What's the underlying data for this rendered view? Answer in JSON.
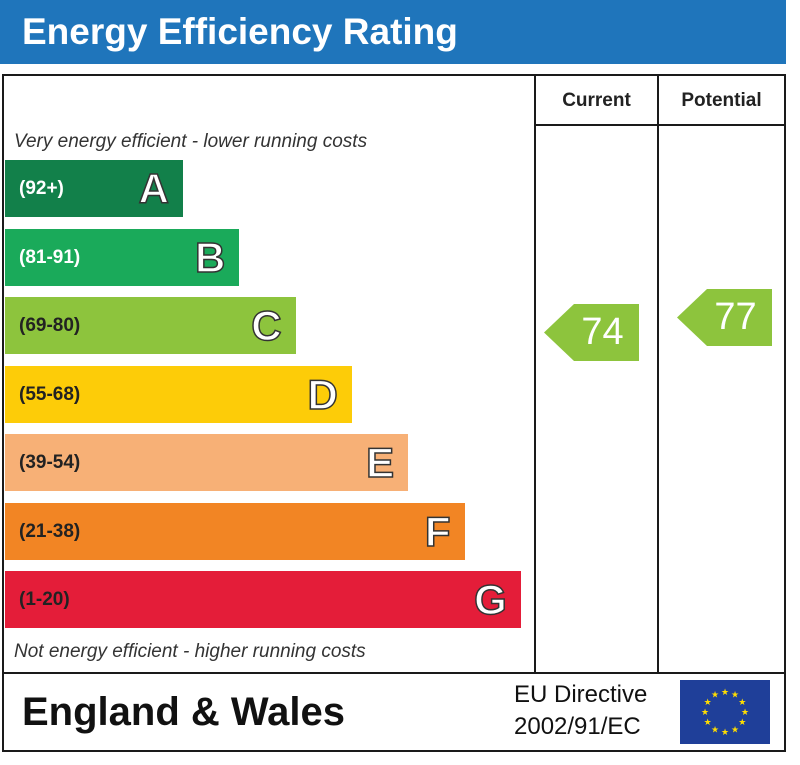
{
  "header": {
    "title": "Energy Efficiency Rating"
  },
  "columns": {
    "current": "Current",
    "potential": "Potential"
  },
  "notes": {
    "top": "Very energy efficient - lower running costs",
    "bottom": "Not energy efficient - higher running costs"
  },
  "chart_data": {
    "type": "bar",
    "title": "Energy Efficiency Rating",
    "categories": [
      "A",
      "B",
      "C",
      "D",
      "E",
      "F",
      "G"
    ],
    "bands": [
      {
        "letter": "A",
        "range": "(92+)",
        "color": "#12804a"
      },
      {
        "letter": "B",
        "range": "(81-91)",
        "color": "#1aaa5a"
      },
      {
        "letter": "C",
        "range": "(69-80)",
        "color": "#8dc43d"
      },
      {
        "letter": "D",
        "range": "(55-68)",
        "color": "#fdcc08"
      },
      {
        "letter": "E",
        "range": "(39-54)",
        "color": "#f7b076"
      },
      {
        "letter": "F",
        "range": "(21-38)",
        "color": "#f28524"
      },
      {
        "letter": "G",
        "range": "(1-20)",
        "color": "#e41d39"
      }
    ],
    "ratings": {
      "current": {
        "value": "74",
        "band": "C",
        "color": "#8dc43d"
      },
      "potential": {
        "value": "77",
        "band": "C",
        "color": "#8dc43d"
      }
    }
  },
  "footer": {
    "region": "England & Wales",
    "directive_line1": "EU Directive",
    "directive_line2": "2002/91/EC",
    "flag_color": "#1f3f99",
    "star_color": "#ffdd00"
  }
}
